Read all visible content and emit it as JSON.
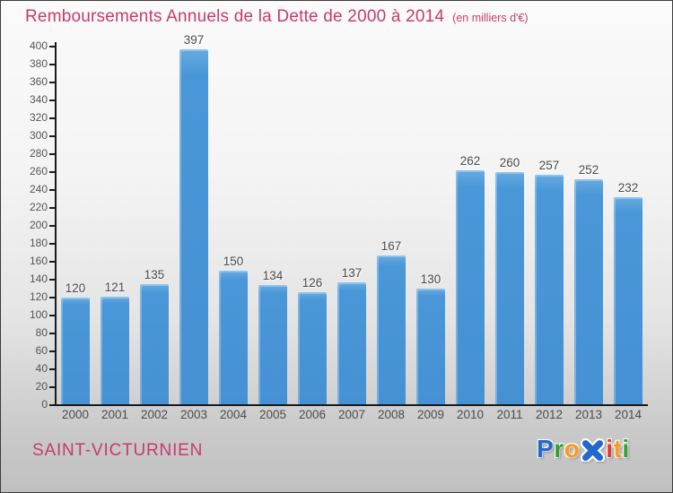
{
  "chart_data": {
    "type": "bar",
    "title": "Remboursements Annuels de la Dette de 2000 à 2014",
    "subtitle": "(en milliers d'€)",
    "categories": [
      "2000",
      "2001",
      "2002",
      "2003",
      "2004",
      "2005",
      "2006",
      "2007",
      "2008",
      "2009",
      "2010",
      "2011",
      "2012",
      "2013",
      "2014"
    ],
    "values": [
      120,
      121,
      135,
      397,
      150,
      134,
      126,
      137,
      167,
      130,
      262,
      260,
      257,
      252,
      232
    ],
    "xlabel": "",
    "ylabel": "",
    "ylim": [
      0,
      400
    ],
    "ytick_step": 20,
    "grid": false,
    "legend": "none",
    "bar_color": "#4a97d8",
    "value_labels_shown": true
  },
  "footer": {
    "place_name": "SAINT-VICTURNIEN",
    "logo": {
      "name": "Proxiti",
      "letters": [
        {
          "ch": "P",
          "color": "#2268cf"
        },
        {
          "ch": "r",
          "color": "#35a035"
        },
        {
          "ch": "o",
          "color": "#f79c1e"
        },
        {
          "ch": "x",
          "color": "#2268cf"
        },
        {
          "ch": "i",
          "color": "#e2392e"
        },
        {
          "ch": "t",
          "color": "#f79c1e"
        },
        {
          "ch": "i",
          "color": "#35a035"
        }
      ]
    }
  },
  "colors": {
    "accent_pink": "#c73a6f",
    "bar_blue": "#4a97d8",
    "axis_black": "#1a1a1a",
    "label_gray": "#4c4c4c",
    "tick_label_gray": "#555555",
    "background_bottom": "#c0c0c0"
  }
}
